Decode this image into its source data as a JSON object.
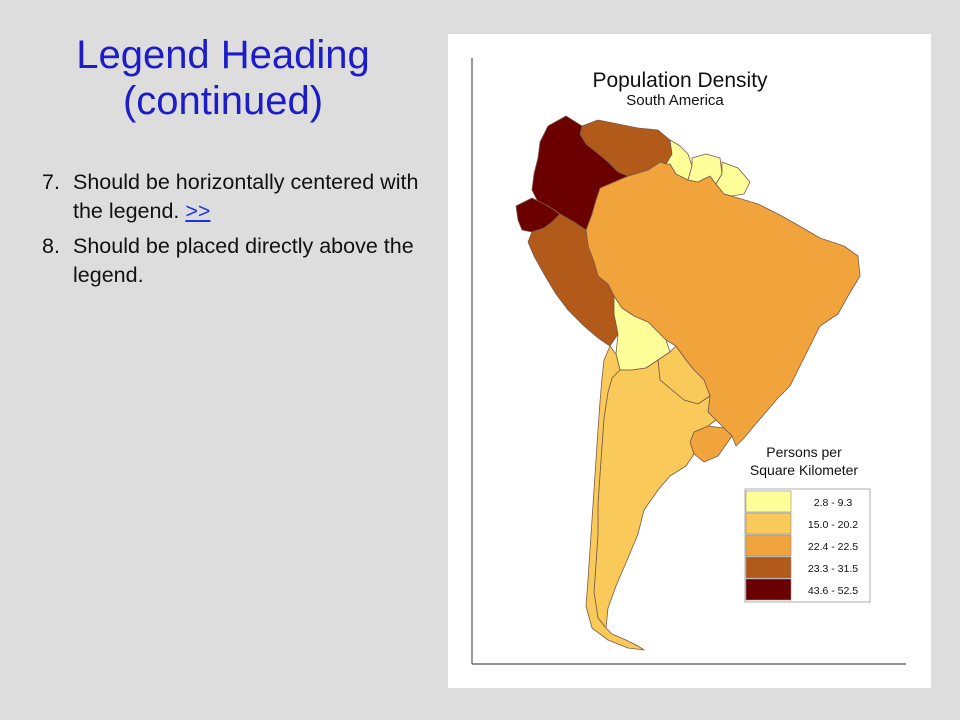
{
  "slide": {
    "title_line1": "Legend Heading",
    "title_line2": "(continued)",
    "bullets": [
      {
        "num": "7.",
        "text": "Should be horizontally centered with the legend. ",
        "link": ">>"
      },
      {
        "num": "8.",
        "text": "Should be placed directly above the legend.",
        "link": ""
      }
    ]
  },
  "map": {
    "title": "Population Density",
    "subtitle": "South America",
    "legend": {
      "heading_line1": "Persons per",
      "heading_line2": "Square Kilometer",
      "classes": [
        {
          "label": "2.8 - 9.3",
          "color": "#ffff99"
        },
        {
          "label": "15.0 - 20.2",
          "color": "#f9c95a"
        },
        {
          "label": "22.4 - 22.5",
          "color": "#f0a43b"
        },
        {
          "label": "23.3 - 31.5",
          "color": "#b25a1a"
        },
        {
          "label": "43.6 - 52.5",
          "color": "#6b0000"
        }
      ]
    },
    "countries": [
      {
        "name": "Colombia",
        "class": 4
      },
      {
        "name": "Ecuador",
        "class": 4
      },
      {
        "name": "Venezuela",
        "class": 3
      },
      {
        "name": "Peru",
        "class": 3
      },
      {
        "name": "Guyana",
        "class": 0
      },
      {
        "name": "Suriname",
        "class": 0
      },
      {
        "name": "French Guiana",
        "class": 0
      },
      {
        "name": "Brazil",
        "class": 2
      },
      {
        "name": "Bolivia",
        "class": 0
      },
      {
        "name": "Paraguay",
        "class": 1
      },
      {
        "name": "Uruguay",
        "class": 2
      },
      {
        "name": "Argentina",
        "class": 1
      },
      {
        "name": "Chile",
        "class": 1
      }
    ]
  }
}
